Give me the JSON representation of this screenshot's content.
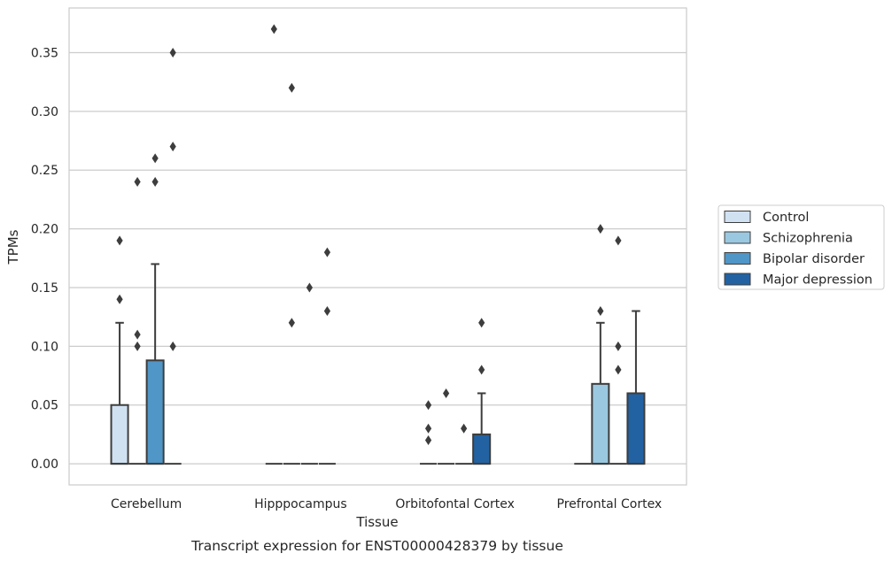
{
  "caption": "Transcript expression for ENST00000428379 by tissue",
  "chart_data": {
    "type": "box",
    "xlabel": "Tissue",
    "ylabel": "TPMs",
    "ylim": [
      -0.018,
      0.388
    ],
    "yticks": [
      0.0,
      0.05,
      0.1,
      0.15,
      0.2,
      0.25,
      0.3,
      0.35
    ],
    "ytick_labels": [
      "0.00",
      "0.05",
      "0.10",
      "0.15",
      "0.20",
      "0.25",
      "0.30",
      "0.35"
    ],
    "grid": "horizontal",
    "legend_position": "right",
    "categories": [
      "Cerebellum",
      "Hipppocampus",
      "Orbitofontal Cortex",
      "Prefrontal Cortex"
    ],
    "series": [
      {
        "name": "Control",
        "color": "#d0e1f2",
        "boxes": [
          {
            "q1": 0.0,
            "median": 0.0,
            "q3": 0.05,
            "whisker_low": 0.0,
            "whisker_high": 0.12,
            "outliers": [
              0.14,
              0.19
            ]
          },
          {
            "q1": 0.0,
            "median": 0.0,
            "q3": 0.0,
            "whisker_low": 0.0,
            "whisker_high": 0.0,
            "outliers": [
              0.37
            ]
          },
          {
            "q1": 0.0,
            "median": 0.0,
            "q3": 0.0,
            "whisker_low": 0.0,
            "whisker_high": 0.0,
            "outliers": [
              0.02,
              0.03,
              0.05
            ]
          },
          {
            "q1": 0.0,
            "median": 0.0,
            "q3": 0.0,
            "whisker_low": 0.0,
            "whisker_high": 0.0,
            "outliers": []
          }
        ]
      },
      {
        "name": "Schizophrenia",
        "color": "#9ac8e0",
        "boxes": [
          {
            "q1": 0.0,
            "median": 0.0,
            "q3": 0.0,
            "whisker_low": 0.0,
            "whisker_high": 0.0,
            "outliers": [
              0.1,
              0.11,
              0.24
            ]
          },
          {
            "q1": 0.0,
            "median": 0.0,
            "q3": 0.0,
            "whisker_low": 0.0,
            "whisker_high": 0.0,
            "outliers": [
              0.12,
              0.32
            ]
          },
          {
            "q1": 0.0,
            "median": 0.0,
            "q3": 0.0,
            "whisker_low": 0.0,
            "whisker_high": 0.0,
            "outliers": [
              0.06
            ]
          },
          {
            "q1": 0.0,
            "median": 0.0,
            "q3": 0.068,
            "whisker_low": 0.0,
            "whisker_high": 0.12,
            "outliers": [
              0.13,
              0.2
            ]
          }
        ]
      },
      {
        "name": "Bipolar disorder",
        "color": "#5096c7",
        "boxes": [
          {
            "q1": 0.0,
            "median": 0.0,
            "q3": 0.088,
            "whisker_low": 0.0,
            "whisker_high": 0.17,
            "outliers": [
              0.24,
              0.26
            ]
          },
          {
            "q1": 0.0,
            "median": 0.0,
            "q3": 0.0,
            "whisker_low": 0.0,
            "whisker_high": 0.0,
            "outliers": [
              0.15
            ]
          },
          {
            "q1": 0.0,
            "median": 0.0,
            "q3": 0.0,
            "whisker_low": 0.0,
            "whisker_high": 0.0,
            "outliers": [
              0.03
            ]
          },
          {
            "q1": 0.0,
            "median": 0.0,
            "q3": 0.0,
            "whisker_low": 0.0,
            "whisker_high": 0.0,
            "outliers": [
              0.08,
              0.1,
              0.19
            ]
          }
        ]
      },
      {
        "name": "Major depression",
        "color": "#2262a3",
        "boxes": [
          {
            "q1": 0.0,
            "median": 0.0,
            "q3": 0.0,
            "whisker_low": 0.0,
            "whisker_high": 0.0,
            "outliers": [
              0.1,
              0.27,
              0.35
            ]
          },
          {
            "q1": 0.0,
            "median": 0.0,
            "q3": 0.0,
            "whisker_low": 0.0,
            "whisker_high": 0.0,
            "outliers": [
              0.13,
              0.18
            ]
          },
          {
            "q1": 0.0,
            "median": 0.0,
            "q3": 0.025,
            "whisker_low": 0.0,
            "whisker_high": 0.06,
            "outliers": [
              0.08,
              0.12
            ]
          },
          {
            "q1": 0.0,
            "median": 0.0,
            "q3": 0.06,
            "whisker_low": 0.0,
            "whisker_high": 0.13,
            "outliers": []
          }
        ]
      }
    ]
  }
}
